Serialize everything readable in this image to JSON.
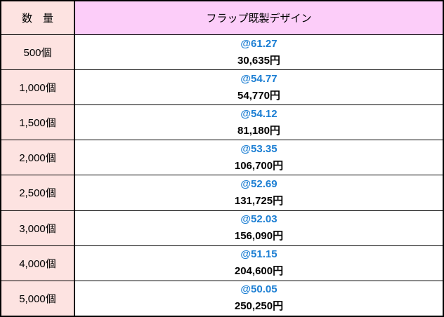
{
  "header": {
    "quantity_label": "数　量",
    "design_label": "フラップ既製デザイン"
  },
  "rows": [
    {
      "quantity": "500個",
      "unit_price": "@61.27",
      "total_price": "30,635円"
    },
    {
      "quantity": "1,000個",
      "unit_price": "@54.77",
      "total_price": "54,770円"
    },
    {
      "quantity": "1,500個",
      "unit_price": "@54.12",
      "total_price": "81,180円"
    },
    {
      "quantity": "2,000個",
      "unit_price": "@53.35",
      "total_price": "106,700円"
    },
    {
      "quantity": "2,500個",
      "unit_price": "@52.69",
      "total_price": "131,725円"
    },
    {
      "quantity": "3,000個",
      "unit_price": "@52.03",
      "total_price": "156,090円"
    },
    {
      "quantity": "4,000個",
      "unit_price": "@51.15",
      "total_price": "204,600円"
    },
    {
      "quantity": "5,000個",
      "unit_price": "@50.05",
      "total_price": "250,250円"
    }
  ],
  "colors": {
    "quantity_bg": "#fde3e1",
    "header_design_bg": "#fccdf9",
    "unit_price_color": "#1b7ed3",
    "total_price_color": "#000000",
    "border_color": "#000000"
  }
}
